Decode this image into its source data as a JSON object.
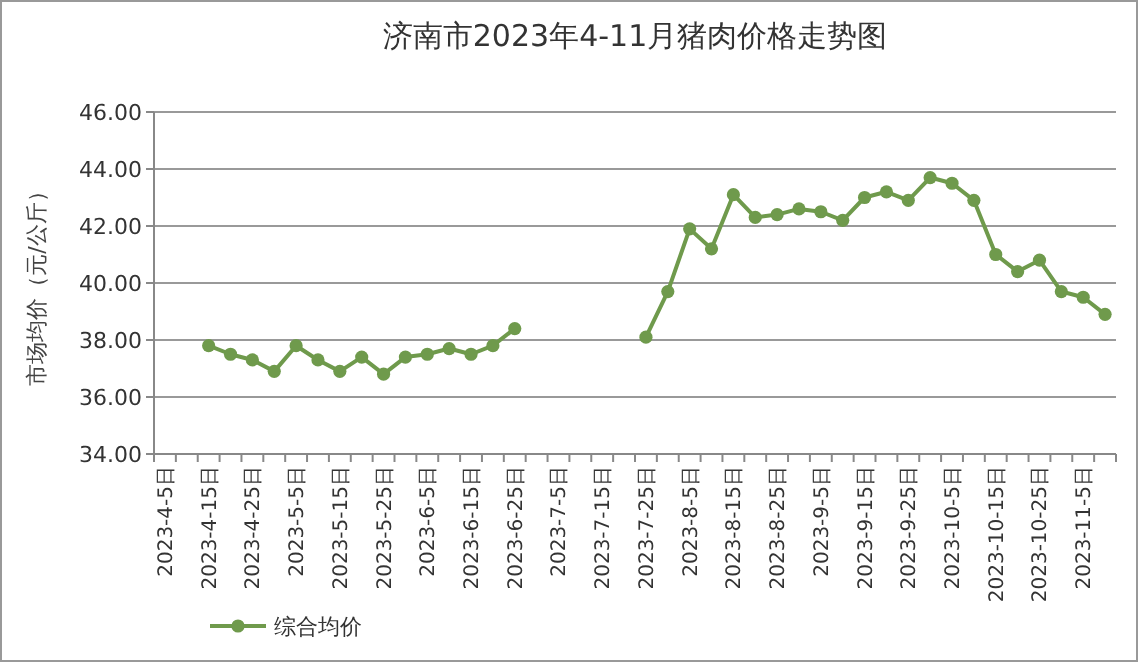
{
  "chart_data": {
    "type": "line",
    "title": "济南市2023年4-11月猪肉价格走势图",
    "ylabel": "市场均价（元/公斤）",
    "categories": [
      "2023-4-5日",
      null,
      "2023-4-15日",
      null,
      "2023-4-25日",
      null,
      "2023-5-5日",
      null,
      "2023-5-15日",
      null,
      "2023-5-25日",
      null,
      "2023-6-5日",
      null,
      "2023-6-15日",
      null,
      "2023-6-25日",
      null,
      "2023-7-5日",
      null,
      "2023-7-15日",
      null,
      "2023-7-25日",
      null,
      "2023-8-5日",
      null,
      "2023-8-15日",
      null,
      "2023-8-25日",
      null,
      "2023-9-5日",
      null,
      "2023-9-15日",
      null,
      "2023-9-25日",
      null,
      "2023-10-5日",
      null,
      "2023-10-15日",
      null,
      "2023-10-25日",
      null,
      "2023-11-5日",
      null
    ],
    "series": [
      {
        "name": "综合均价",
        "color": "#6f9a4c",
        "values": [
          null,
          null,
          37.8,
          37.5,
          37.3,
          36.9,
          37.8,
          37.3,
          36.9,
          37.4,
          36.8,
          37.4,
          37.5,
          37.7,
          37.5,
          37.8,
          38.4,
          null,
          null,
          null,
          null,
          null,
          38.1,
          39.7,
          41.9,
          41.2,
          43.1,
          42.3,
          42.4,
          42.6,
          42.5,
          42.2,
          43.0,
          43.2,
          42.9,
          43.7,
          43.5,
          42.9,
          41.0,
          40.4,
          40.8,
          39.7,
          39.5,
          38.9
        ]
      }
    ],
    "ylim": [
      34,
      46
    ],
    "yticks": [
      {
        "value": 34,
        "label": "34.00"
      },
      {
        "value": 36,
        "label": "36.00"
      },
      {
        "value": 38,
        "label": "38.00"
      },
      {
        "value": 40,
        "label": "40.00"
      },
      {
        "value": 42,
        "label": "42.00"
      },
      {
        "value": 44,
        "label": "44.00"
      },
      {
        "value": 46,
        "label": "46.00"
      }
    ],
    "grid": "y",
    "legend": "bottom left",
    "marker": "circle",
    "line_style": "solid"
  }
}
